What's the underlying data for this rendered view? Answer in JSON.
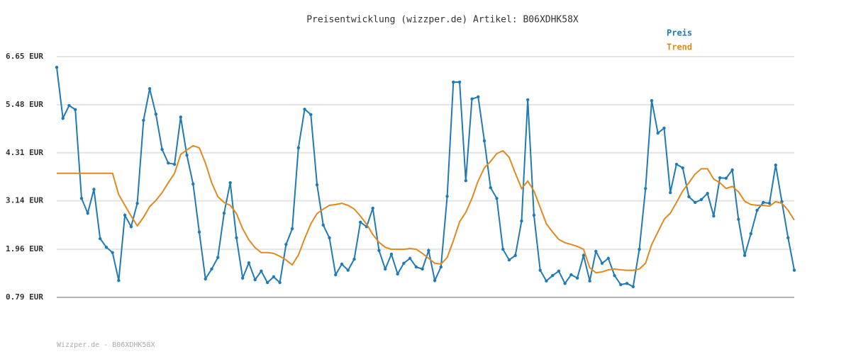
{
  "chart_data": {
    "type": "line",
    "title": "Preisentwicklung (wizzper.de) Artikel: B06XDHK58X",
    "footer": "Wizzper.de - B06XDHK58X",
    "ylim": [
      0.79,
      6.65
    ],
    "yticks": [
      {
        "value": 0.79,
        "label": "0.79 EUR"
      },
      {
        "value": 1.96,
        "label": "1.96 EUR"
      },
      {
        "value": 3.14,
        "label": "3.14 EUR"
      },
      {
        "value": 4.31,
        "label": "4.31 EUR"
      },
      {
        "value": 5.48,
        "label": "5.48 EUR"
      },
      {
        "value": 6.65,
        "label": "6.65 EUR"
      }
    ],
    "grid": true,
    "legend": "top-right",
    "series": [
      {
        "name": "Preis",
        "color": "#1f7ab5",
        "markers": true,
        "values": [
          6.39,
          5.15,
          5.46,
          5.36,
          3.2,
          2.84,
          3.42,
          2.22,
          2.01,
          1.88,
          1.2,
          2.79,
          2.51,
          3.08,
          5.1,
          5.87,
          5.25,
          4.39,
          4.06,
          4.03,
          5.18,
          4.25,
          3.55,
          2.38,
          1.24,
          1.48,
          1.76,
          2.84,
          3.58,
          2.24,
          1.26,
          1.63,
          1.22,
          1.43,
          1.15,
          1.29,
          1.15,
          2.08,
          2.46,
          4.43,
          5.37,
          5.24,
          3.53,
          2.55,
          2.24,
          1.34,
          1.6,
          1.45,
          1.72,
          2.62,
          2.51,
          2.96,
          1.93,
          1.48,
          1.84,
          1.36,
          1.62,
          1.74,
          1.53,
          1.48,
          1.93,
          1.2,
          1.53,
          3.25,
          6.03,
          6.03,
          3.63,
          5.62,
          5.67,
          4.6,
          3.46,
          3.2,
          1.96,
          1.7,
          1.81,
          2.65,
          5.6,
          2.79,
          1.45,
          1.19,
          1.32,
          1.43,
          1.13,
          1.34,
          1.26,
          1.81,
          1.19,
          1.91,
          1.62,
          1.74,
          1.32,
          1.1,
          1.13,
          1.05,
          1.96,
          3.44,
          5.58,
          4.79,
          4.91,
          3.34,
          4.03,
          3.94,
          3.24,
          3.1,
          3.17,
          3.32,
          2.77,
          3.7,
          3.69,
          3.89,
          2.69,
          1.81,
          2.34,
          2.91,
          3.1,
          3.08,
          4.01,
          3.12,
          2.24,
          1.45
        ]
      },
      {
        "name": "Trend",
        "color": "#e08a1e",
        "markers": false,
        "values": [
          3.81,
          3.81,
          3.81,
          3.81,
          3.81,
          3.81,
          3.81,
          3.81,
          3.81,
          3.81,
          3.29,
          3.03,
          2.77,
          2.53,
          2.74,
          3.0,
          3.15,
          3.34,
          3.58,
          3.81,
          4.27,
          4.38,
          4.48,
          4.43,
          4.06,
          3.58,
          3.24,
          3.1,
          3.03,
          2.83,
          2.46,
          2.19,
          2.0,
          1.88,
          1.88,
          1.86,
          1.79,
          1.7,
          1.58,
          1.82,
          2.22,
          2.58,
          2.83,
          2.94,
          3.03,
          3.05,
          3.08,
          3.03,
          2.94,
          2.77,
          2.57,
          2.32,
          2.13,
          2.01,
          1.96,
          1.96,
          1.96,
          1.98,
          1.96,
          1.86,
          1.74,
          1.62,
          1.6,
          1.76,
          2.17,
          2.63,
          2.86,
          3.2,
          3.63,
          3.94,
          4.1,
          4.29,
          4.36,
          4.2,
          3.81,
          3.44,
          3.62,
          3.38,
          2.98,
          2.58,
          2.38,
          2.2,
          2.12,
          2.08,
          2.03,
          1.96,
          1.51,
          1.39,
          1.41,
          1.46,
          1.48,
          1.46,
          1.45,
          1.45,
          1.48,
          1.62,
          2.08,
          2.38,
          2.69,
          2.84,
          3.1,
          3.38,
          3.58,
          3.79,
          3.92,
          3.92,
          3.67,
          3.58,
          3.44,
          3.49,
          3.36,
          3.13,
          3.05,
          3.03,
          3.03,
          3.01,
          3.12,
          3.08,
          2.91,
          2.67
        ]
      }
    ]
  }
}
